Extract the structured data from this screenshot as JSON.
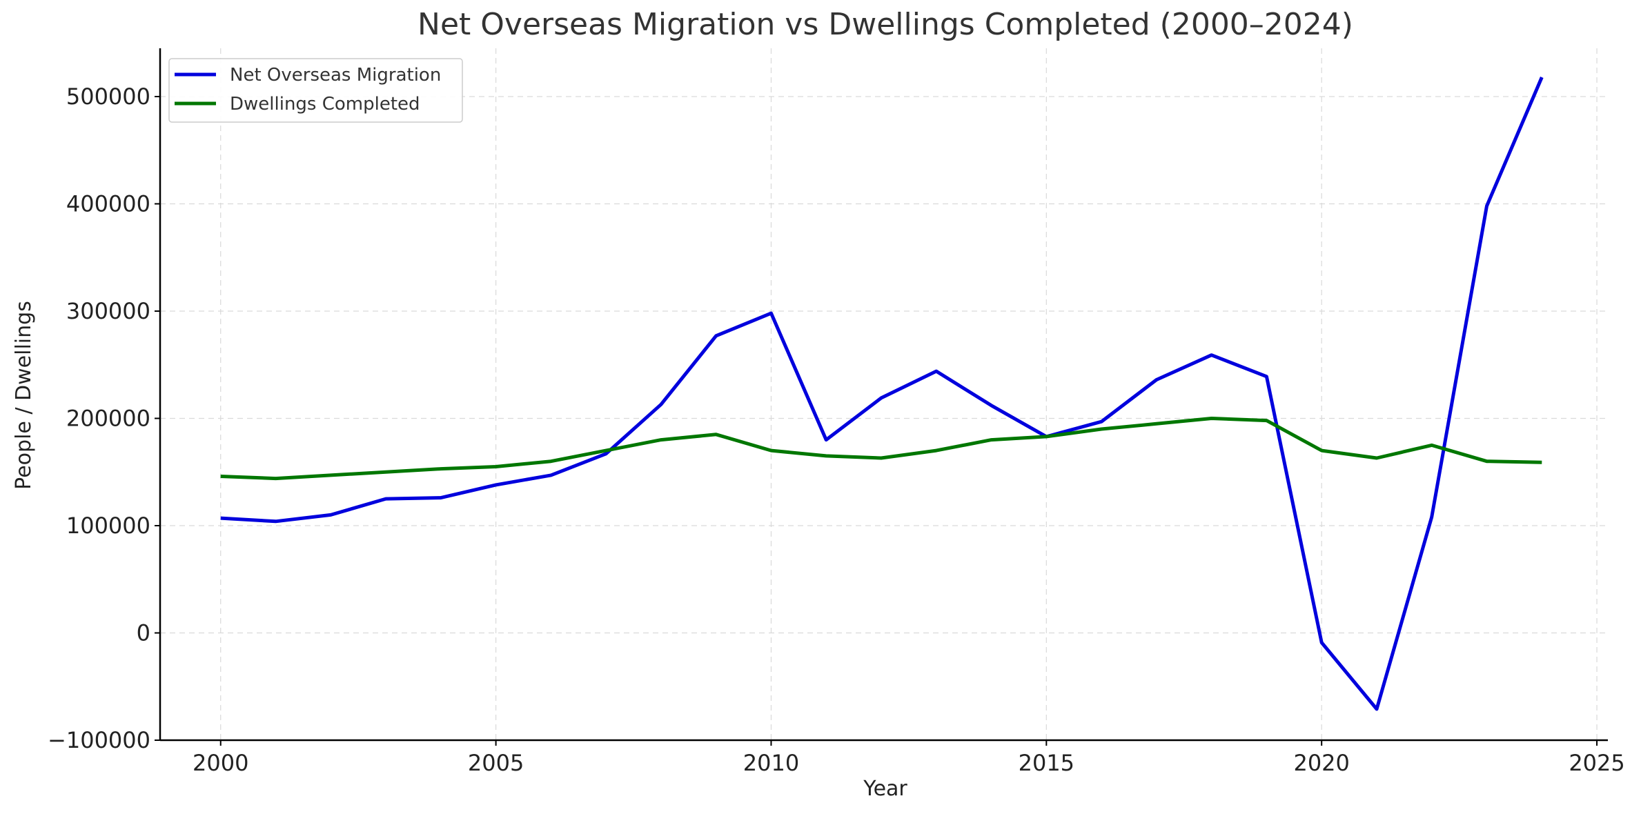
{
  "chart_data": {
    "type": "line",
    "title": "Net Overseas Migration vs Dwellings Completed (2000–2024)",
    "xlabel": "Year",
    "ylabel": "People / Dwellings",
    "xlim": [
      1998.9,
      2025.2
    ],
    "ylim": [
      -100000,
      545000
    ],
    "x_ticks": [
      2000,
      2005,
      2010,
      2015,
      2020,
      2025
    ],
    "y_ticks": [
      -100000,
      0,
      100000,
      200000,
      300000,
      400000,
      500000
    ],
    "y_tick_labels": [
      "−100000",
      "0",
      "100000",
      "200000",
      "300000",
      "400000",
      "500000"
    ],
    "grid": true,
    "legend_position": "top-left",
    "x": [
      2000,
      2001,
      2002,
      2003,
      2004,
      2005,
      2006,
      2007,
      2008,
      2009,
      2010,
      2011,
      2012,
      2013,
      2014,
      2015,
      2016,
      2017,
      2018,
      2019,
      2020,
      2021,
      2022,
      2023,
      2024
    ],
    "series": [
      {
        "name": "Net Overseas Migration",
        "color": "#0000dd",
        "values": [
          107000,
          104000,
          110000,
          125000,
          126000,
          138000,
          147000,
          167000,
          213000,
          277000,
          298000,
          180000,
          219000,
          244000,
          212000,
          183000,
          197000,
          236000,
          259000,
          239000,
          -9000,
          -71000,
          108000,
          398000,
          518000
        ]
      },
      {
        "name": "Dwellings Completed",
        "color": "#007700",
        "values": [
          146000,
          144000,
          147000,
          150000,
          153000,
          155000,
          160000,
          170000,
          180000,
          185000,
          170000,
          165000,
          163000,
          170000,
          180000,
          183000,
          190000,
          195000,
          200000,
          198000,
          170000,
          163000,
          175000,
          160000,
          159000
        ]
      }
    ]
  }
}
